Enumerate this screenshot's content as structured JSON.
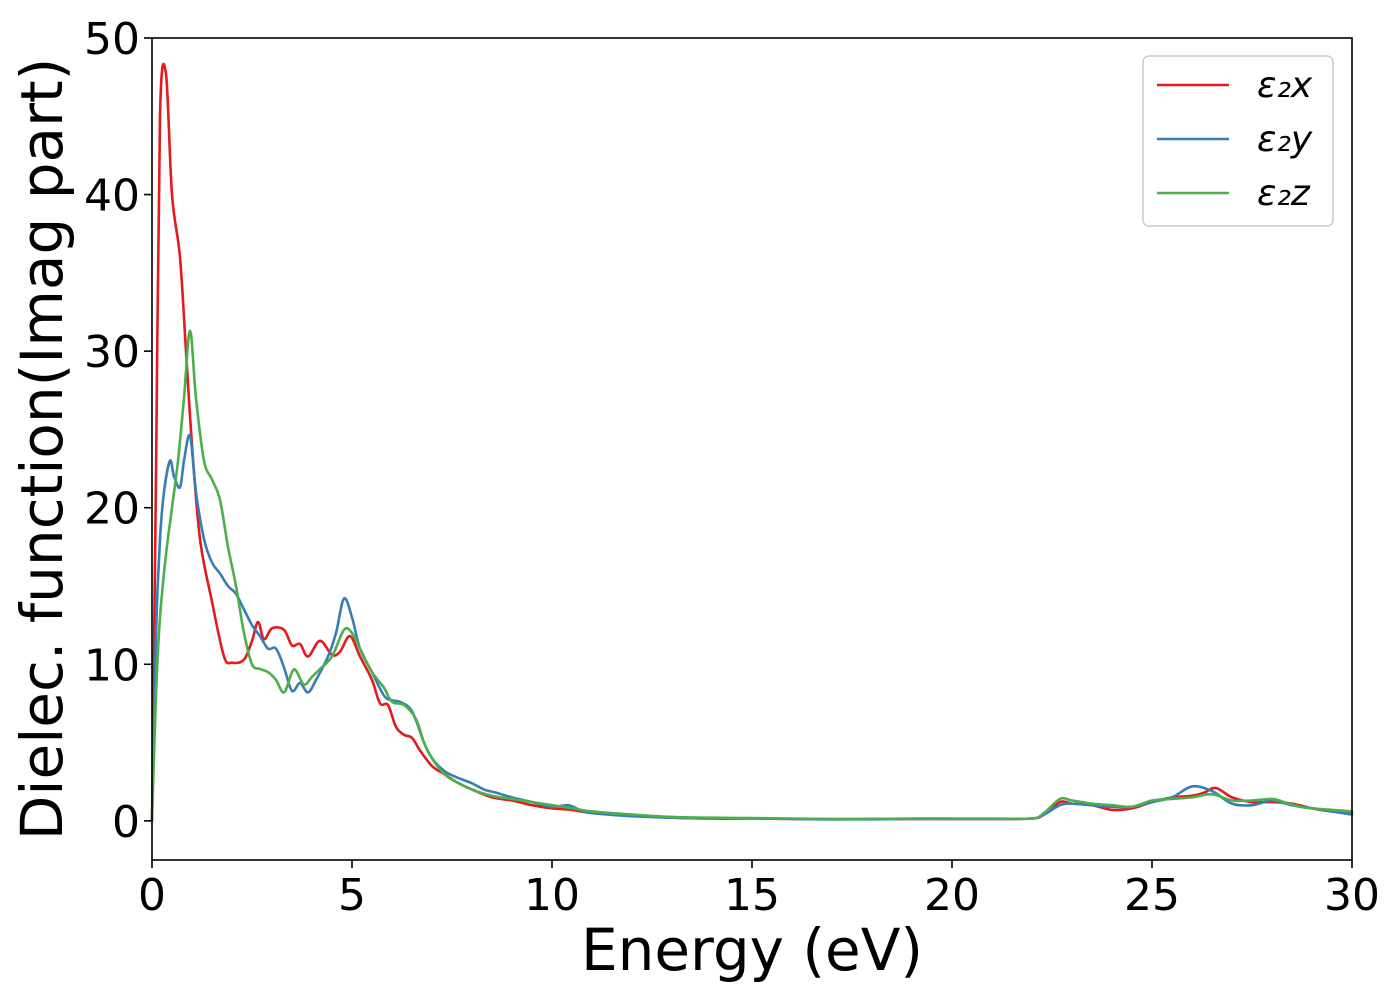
{
  "chart_data": {
    "type": "line",
    "title": "",
    "xlabel": "Energy (eV)",
    "ylabel": "Dielec. function(Imag part)",
    "xlim": [
      0,
      30
    ],
    "ylim": [
      -2.5,
      50
    ],
    "xticks": [
      0,
      5,
      10,
      15,
      20,
      25,
      30
    ],
    "yticks": [
      0,
      10,
      20,
      30,
      40,
      50
    ],
    "xtick_labels": [
      "0",
      "5",
      "10",
      "15",
      "20",
      "25",
      "30"
    ],
    "ytick_labels": [
      "0",
      "10",
      "20",
      "30",
      "40",
      "50"
    ],
    "grid": false,
    "legend_position": "top-right",
    "series": [
      {
        "name": "ε₂x",
        "color": "#e41a1c",
        "points": [
          [
            0,
            0
          ],
          [
            0.1,
            22
          ],
          [
            0.2,
            45
          ],
          [
            0.35,
            47.7
          ],
          [
            0.5,
            40
          ],
          [
            0.7,
            36
          ],
          [
            0.85,
            30
          ],
          [
            1.0,
            24
          ],
          [
            1.2,
            18
          ],
          [
            1.5,
            14
          ],
          [
            1.8,
            10.5
          ],
          [
            2.0,
            10.1
          ],
          [
            2.3,
            10.3
          ],
          [
            2.5,
            11.5
          ],
          [
            2.65,
            12.7
          ],
          [
            2.8,
            11.6
          ],
          [
            3.0,
            12.3
          ],
          [
            3.3,
            12.2
          ],
          [
            3.5,
            11.2
          ],
          [
            3.7,
            11.3
          ],
          [
            3.9,
            10.5
          ],
          [
            4.2,
            11.5
          ],
          [
            4.5,
            10.6
          ],
          [
            4.7,
            10.8
          ],
          [
            4.95,
            11.8
          ],
          [
            5.2,
            10.5
          ],
          [
            5.5,
            9.0
          ],
          [
            5.7,
            7.5
          ],
          [
            5.9,
            7.4
          ],
          [
            6.1,
            6.0
          ],
          [
            6.3,
            5.5
          ],
          [
            6.5,
            5.3
          ],
          [
            6.7,
            4.5
          ],
          [
            7.0,
            3.5
          ],
          [
            7.3,
            3.0
          ],
          [
            7.6,
            2.5
          ],
          [
            8.0,
            2.0
          ],
          [
            8.5,
            1.5
          ],
          [
            9.0,
            1.3
          ],
          [
            9.5,
            1.0
          ],
          [
            10.0,
            0.8
          ],
          [
            10.5,
            0.7
          ],
          [
            11.0,
            0.5
          ],
          [
            12.0,
            0.35
          ],
          [
            13.0,
            0.2
          ],
          [
            14.0,
            0.15
          ],
          [
            15.0,
            0.15
          ],
          [
            16.0,
            0.12
          ],
          [
            17.0,
            0.1
          ],
          [
            18.0,
            0.12
          ],
          [
            19.0,
            0.12
          ],
          [
            20.0,
            0.12
          ],
          [
            21.0,
            0.12
          ],
          [
            22.0,
            0.15
          ],
          [
            22.3,
            0.4
          ],
          [
            22.7,
            1.2
          ],
          [
            23.0,
            1.1
          ],
          [
            23.5,
            1.0
          ],
          [
            24.0,
            0.7
          ],
          [
            24.5,
            0.8
          ],
          [
            25.0,
            1.2
          ],
          [
            25.5,
            1.5
          ],
          [
            26.0,
            1.6
          ],
          [
            26.3,
            1.8
          ],
          [
            26.6,
            2.1
          ],
          [
            27.0,
            1.5
          ],
          [
            27.5,
            1.2
          ],
          [
            28.0,
            1.2
          ],
          [
            28.5,
            1.1
          ],
          [
            29.0,
            0.8
          ],
          [
            29.5,
            0.6
          ],
          [
            30.0,
            0.5
          ]
        ]
      },
      {
        "name": "ε₂y",
        "color": "#377eb8",
        "points": [
          [
            0,
            0
          ],
          [
            0.1,
            12
          ],
          [
            0.2,
            18
          ],
          [
            0.3,
            21
          ],
          [
            0.45,
            23.0
          ],
          [
            0.55,
            22
          ],
          [
            0.7,
            21.3
          ],
          [
            0.8,
            23
          ],
          [
            0.95,
            24.6
          ],
          [
            1.1,
            21
          ],
          [
            1.3,
            18
          ],
          [
            1.5,
            16.5
          ],
          [
            1.7,
            15.8
          ],
          [
            1.9,
            15.0
          ],
          [
            2.1,
            14.5
          ],
          [
            2.3,
            13.5
          ],
          [
            2.5,
            12.5
          ],
          [
            2.7,
            11.8
          ],
          [
            2.9,
            11.0
          ],
          [
            3.1,
            11.0
          ],
          [
            3.3,
            9.8
          ],
          [
            3.5,
            8.3
          ],
          [
            3.7,
            8.8
          ],
          [
            3.9,
            8.2
          ],
          [
            4.1,
            9.0
          ],
          [
            4.4,
            10.5
          ],
          [
            4.6,
            12.0
          ],
          [
            4.8,
            14.2
          ],
          [
            5.0,
            13.0
          ],
          [
            5.2,
            11.0
          ],
          [
            5.5,
            9.5
          ],
          [
            5.8,
            8.0
          ],
          [
            6.0,
            7.7
          ],
          [
            6.2,
            7.6
          ],
          [
            6.5,
            7.0
          ],
          [
            6.8,
            5.0
          ],
          [
            7.0,
            4.0
          ],
          [
            7.3,
            3.2
          ],
          [
            7.6,
            2.8
          ],
          [
            8.0,
            2.4
          ],
          [
            8.3,
            2.0
          ],
          [
            8.6,
            1.8
          ],
          [
            9.0,
            1.5
          ],
          [
            9.5,
            1.2
          ],
          [
            10.0,
            0.9
          ],
          [
            10.4,
            1.0
          ],
          [
            10.7,
            0.7
          ],
          [
            11.0,
            0.5
          ],
          [
            12.0,
            0.3
          ],
          [
            13.0,
            0.2
          ],
          [
            14.0,
            0.15
          ],
          [
            15.0,
            0.15
          ],
          [
            16.0,
            0.12
          ],
          [
            17.0,
            0.1
          ],
          [
            18.0,
            0.1
          ],
          [
            19.0,
            0.12
          ],
          [
            20.0,
            0.12
          ],
          [
            21.0,
            0.12
          ],
          [
            22.0,
            0.15
          ],
          [
            22.3,
            0.4
          ],
          [
            22.7,
            1.0
          ],
          [
            23.0,
            1.1
          ],
          [
            23.5,
            1.0
          ],
          [
            24.0,
            0.9
          ],
          [
            24.5,
            0.9
          ],
          [
            25.0,
            1.2
          ],
          [
            25.5,
            1.5
          ],
          [
            26.0,
            2.2
          ],
          [
            26.5,
            1.9
          ],
          [
            27.0,
            1.1
          ],
          [
            27.5,
            1.0
          ],
          [
            28.0,
            1.3
          ],
          [
            28.5,
            1.0
          ],
          [
            29.0,
            0.8
          ],
          [
            29.5,
            0.6
          ],
          [
            30.0,
            0.4
          ]
        ]
      },
      {
        "name": "ε₂z",
        "color": "#4daf4a",
        "points": [
          [
            0,
            0
          ],
          [
            0.1,
            8
          ],
          [
            0.2,
            13
          ],
          [
            0.35,
            17
          ],
          [
            0.5,
            20
          ],
          [
            0.65,
            23
          ],
          [
            0.8,
            27
          ],
          [
            0.95,
            31.3
          ],
          [
            1.1,
            27
          ],
          [
            1.3,
            23
          ],
          [
            1.5,
            21.8
          ],
          [
            1.7,
            20.5
          ],
          [
            1.9,
            17.5
          ],
          [
            2.1,
            15
          ],
          [
            2.3,
            12
          ],
          [
            2.5,
            10
          ],
          [
            2.7,
            9.7
          ],
          [
            2.9,
            9.5
          ],
          [
            3.1,
            9.0
          ],
          [
            3.3,
            8.2
          ],
          [
            3.5,
            9.5
          ],
          [
            3.6,
            9.6
          ],
          [
            3.8,
            8.7
          ],
          [
            4.0,
            9.2
          ],
          [
            4.2,
            9.7
          ],
          [
            4.5,
            10.5
          ],
          [
            4.8,
            12.2
          ],
          [
            5.0,
            12.0
          ],
          [
            5.2,
            11.0
          ],
          [
            5.5,
            9.5
          ],
          [
            5.8,
            8.5
          ],
          [
            6.0,
            7.6
          ],
          [
            6.3,
            7.4
          ],
          [
            6.6,
            6.5
          ],
          [
            6.8,
            5.0
          ],
          [
            7.0,
            4.0
          ],
          [
            7.3,
            3.0
          ],
          [
            7.6,
            2.5
          ],
          [
            8.0,
            2.0
          ],
          [
            8.5,
            1.6
          ],
          [
            9.0,
            1.4
          ],
          [
            9.5,
            1.2
          ],
          [
            10.0,
            1.0
          ],
          [
            10.5,
            0.8
          ],
          [
            11.0,
            0.6
          ],
          [
            12.0,
            0.4
          ],
          [
            13.0,
            0.25
          ],
          [
            14.0,
            0.2
          ],
          [
            15.0,
            0.18
          ],
          [
            16.0,
            0.15
          ],
          [
            17.0,
            0.12
          ],
          [
            18.0,
            0.12
          ],
          [
            19.0,
            0.15
          ],
          [
            20.0,
            0.15
          ],
          [
            21.0,
            0.15
          ],
          [
            22.0,
            0.15
          ],
          [
            22.3,
            0.5
          ],
          [
            22.7,
            1.4
          ],
          [
            23.0,
            1.3
          ],
          [
            23.5,
            1.1
          ],
          [
            24.0,
            1.0
          ],
          [
            24.5,
            0.9
          ],
          [
            25.0,
            1.3
          ],
          [
            25.5,
            1.4
          ],
          [
            26.0,
            1.5
          ],
          [
            26.5,
            1.7
          ],
          [
            27.0,
            1.3
          ],
          [
            27.5,
            1.3
          ],
          [
            28.0,
            1.4
          ],
          [
            28.3,
            1.2
          ],
          [
            28.7,
            0.9
          ],
          [
            29.0,
            0.8
          ],
          [
            29.5,
            0.7
          ],
          [
            30.0,
            0.6
          ]
        ]
      }
    ]
  }
}
